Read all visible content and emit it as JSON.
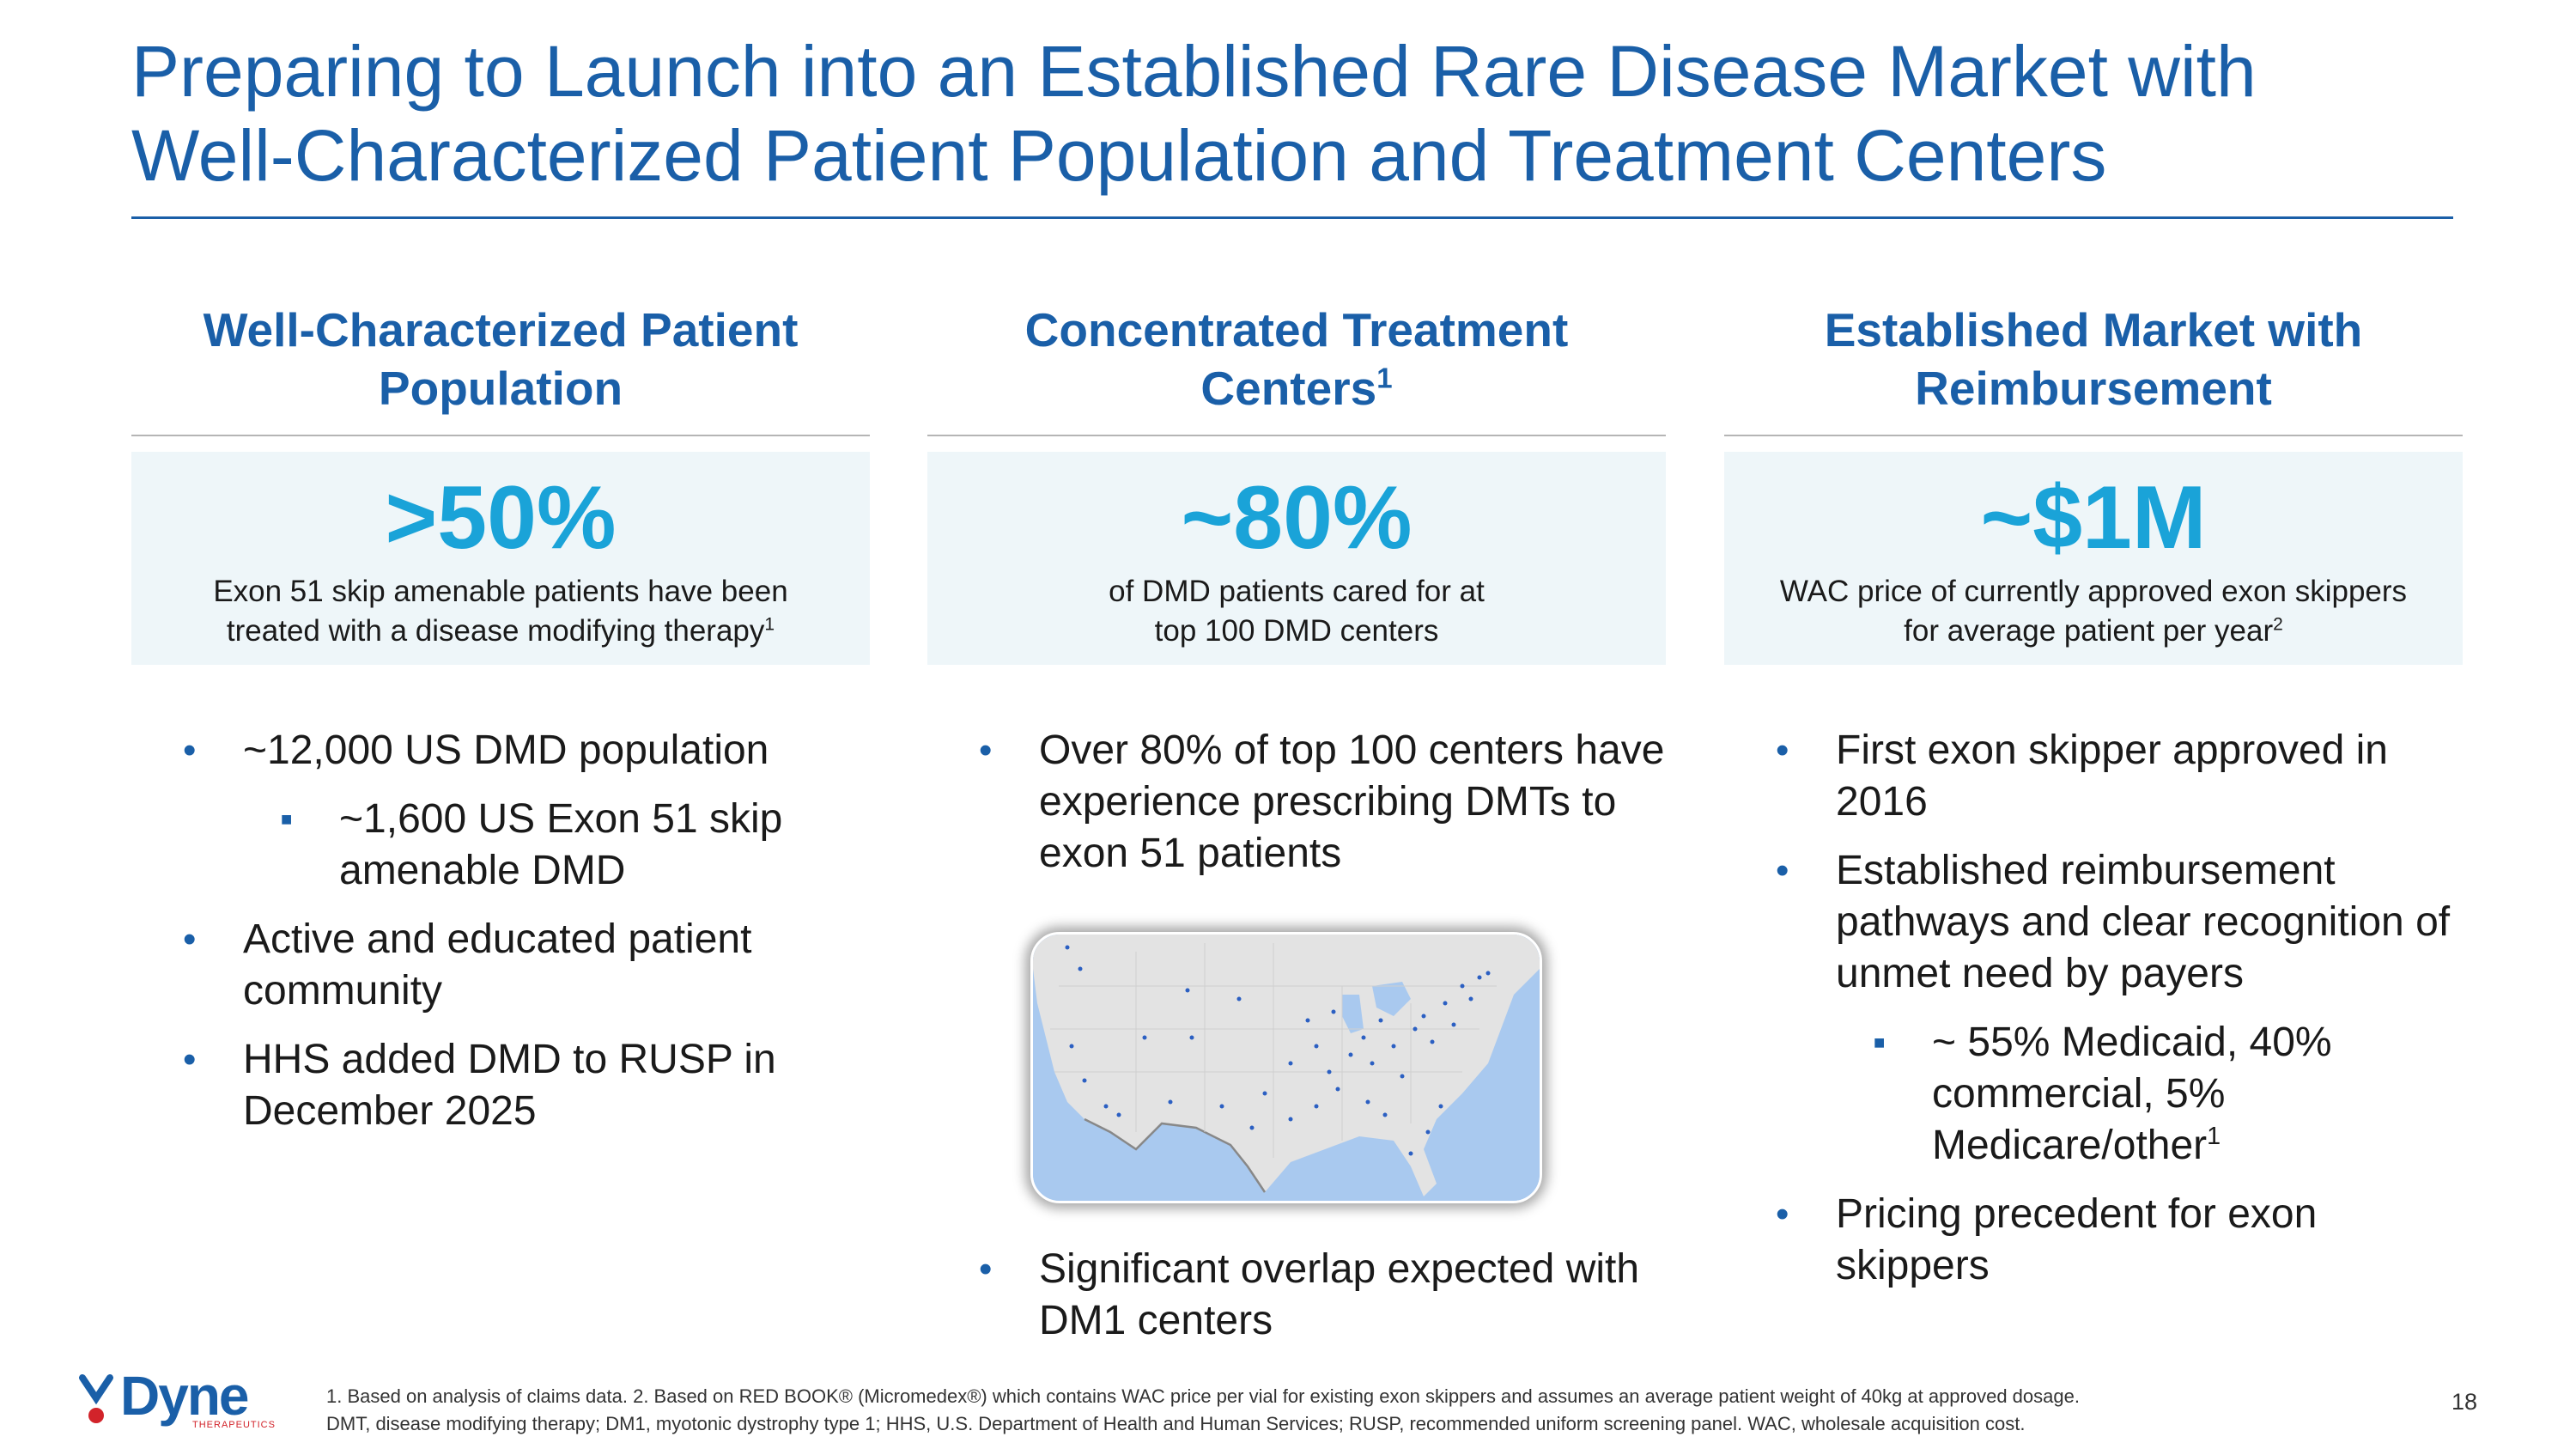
{
  "header": {
    "title_line1": "Preparing to Launch into an Established Rare Disease Market with",
    "title_line2": "Well-Characterized Patient Population and Treatment Centers"
  },
  "columns": [
    {
      "heading_line1": "Well-Characterized Patient",
      "heading_line2": "Population",
      "stat_value": ">50%",
      "stat_desc_line1": "Exon 51 skip amenable patients have been",
      "stat_desc_line2": "treated with a disease modifying therapy",
      "stat_desc_sup": "1",
      "bullets": [
        "~12,000 US DMD population",
        "~1,600 US Exon 51 skip amenable DMD",
        "Active and educated patient community",
        "HHS added DMD to RUSP in December 2025"
      ]
    },
    {
      "heading_line1": "Concentrated Treatment",
      "heading_line2": "Centers",
      "heading_sup": "1",
      "stat_value": "~80%",
      "stat_desc_line1": "of DMD patients cared for at",
      "stat_desc_line2": "top 100 DMD centers",
      "bullets": [
        "Over 80% of top 100 centers have experience prescribing DMTs to exon 51 patients",
        "Significant overlap expected with DM1 centers"
      ]
    },
    {
      "heading_line1": "Established Market with",
      "heading_line2": "Reimbursement",
      "stat_value": "~$1M",
      "stat_desc_line1": "WAC price of currently approved exon skippers",
      "stat_desc_line2": "for average patient per year",
      "stat_desc_sup": "2",
      "bullets": [
        "First exon skipper approved in 2016",
        "Established reimbursement pathways and clear recognition of unmet need by payers",
        "~ 55% Medicaid, 40% commercial, 5% Medicare/other",
        "Pricing precedent for exon skippers"
      ],
      "sub_bullet_sup": "1"
    }
  ],
  "footer": {
    "footnote_line1": "1. Based on analysis of claims data.  2. Based on RED BOOK® (Micromedex®) which contains WAC price per vial for existing exon skippers and assumes an average patient weight of 40kg at approved dosage.",
    "footnote_line2": "DMT, disease modifying therapy; DM1, myotonic dystrophy type 1; HHS, U.S. Department of Health and Human Services; RUSP, recommended uniform screening panel. WAC, wholesale acquisition cost.",
    "page_number": "18",
    "logo_text": "Dyne",
    "logo_subtext": "THERAPEUTICS"
  },
  "colors": {
    "brand_blue": "#1a5fa8",
    "stat_cyan": "#1aa3d8",
    "box_bg": "#eef6f9",
    "logo_red": "#d2232a"
  }
}
